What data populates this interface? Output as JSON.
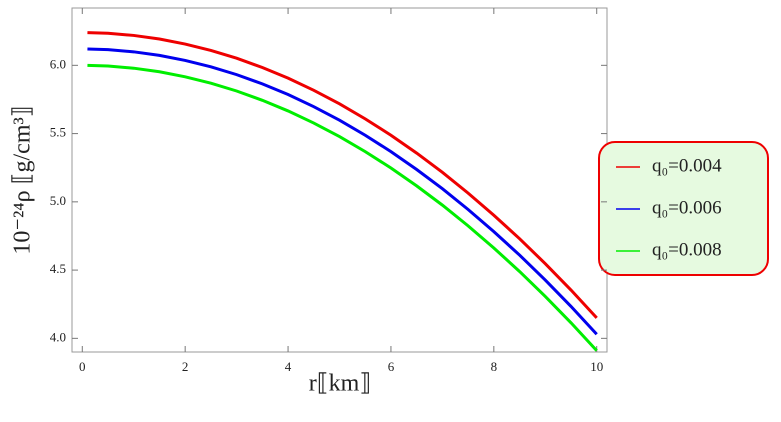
{
  "chart_data": {
    "type": "line",
    "x_label": "r⟦km⟧",
    "y_label": "10⁻²⁴ρ ⟦g/cm³⟧",
    "x": [
      0.1,
      0.5,
      1,
      1.5,
      2,
      2.5,
      3,
      3.5,
      4,
      4.5,
      5,
      5.5,
      6,
      6.5,
      7,
      7.5,
      8,
      8.5,
      9,
      9.5,
      10
    ],
    "series": [
      {
        "name": "q₀=0.004",
        "color": "#ee0000",
        "values": [
          6.24,
          6.235,
          6.219,
          6.193,
          6.156,
          6.109,
          6.052,
          5.984,
          5.906,
          5.817,
          5.718,
          5.608,
          5.488,
          5.357,
          5.216,
          5.064,
          4.902,
          4.73,
          4.547,
          4.354,
          4.15
        ]
      },
      {
        "name": "q₀=0.006",
        "color": "#0000ee",
        "values": [
          6.12,
          6.115,
          6.099,
          6.073,
          6.036,
          5.989,
          5.932,
          5.864,
          5.786,
          5.697,
          5.598,
          5.488,
          5.368,
          5.237,
          5.096,
          4.944,
          4.782,
          4.61,
          4.427,
          4.234,
          4.03
        ]
      },
      {
        "name": "q₀=0.008",
        "color": "#00ee00",
        "values": [
          6.0,
          5.995,
          5.979,
          5.953,
          5.916,
          5.869,
          5.812,
          5.744,
          5.666,
          5.577,
          5.478,
          5.368,
          5.248,
          5.117,
          4.976,
          4.824,
          4.662,
          4.49,
          4.307,
          4.114,
          3.91
        ]
      }
    ],
    "xlim": [
      -0.2,
      10.2
    ],
    "ylim": [
      3.9,
      6.42
    ],
    "xticks": [
      0,
      2,
      4,
      6,
      8,
      10
    ],
    "yticks": [
      {
        "value": 4,
        "label": "4.0"
      },
      {
        "value": 4.5,
        "label": "4.5"
      },
      {
        "value": 5,
        "label": "5.0"
      },
      {
        "value": 5.5,
        "label": "5.5"
      },
      {
        "value": 6,
        "label": "6.0"
      }
    ],
    "legend": "right"
  }
}
